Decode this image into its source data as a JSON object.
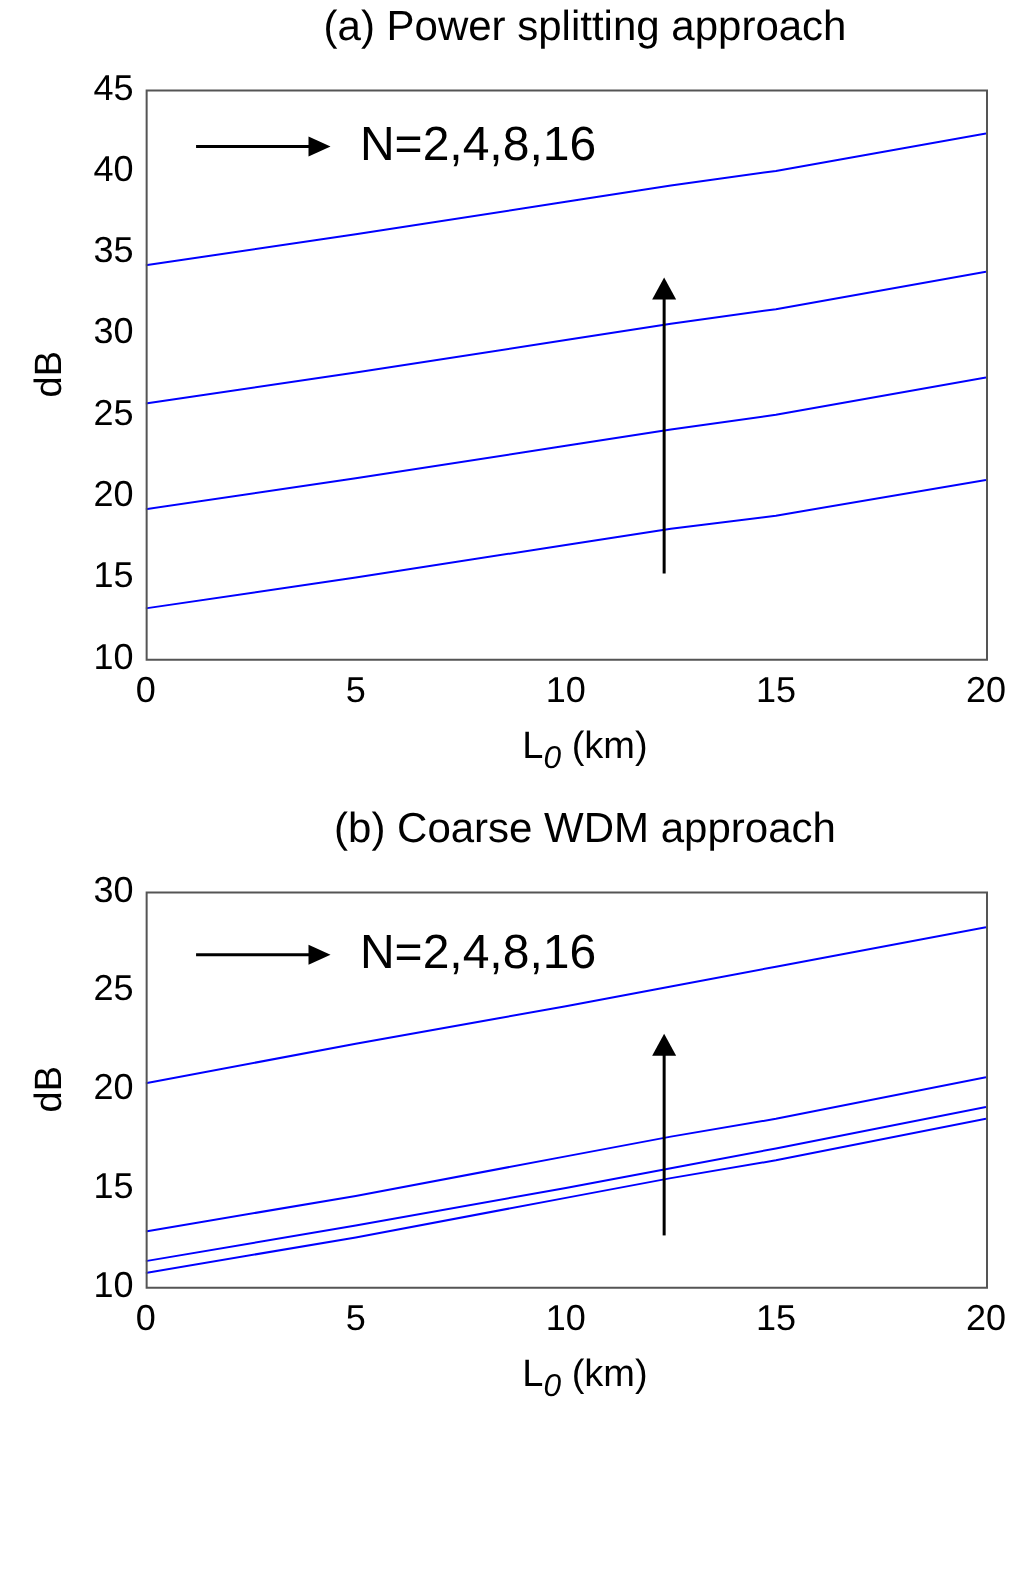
{
  "chart_data": [
    {
      "type": "line",
      "title": "(a) Power splitting approach",
      "xlabel": "L$_{0}$ (km)",
      "ylabel": "dB",
      "x": [
        0,
        5,
        10,
        12.5,
        15,
        20
      ],
      "series": [
        {
          "color": "#0000ff",
          "values": [
            13.1,
            15.0,
            17.0,
            18.0,
            18.8,
            21.0
          ]
        },
        {
          "color": "#0000ff",
          "values": [
            19.2,
            21.1,
            23.1,
            24.1,
            25.0,
            27.3
          ]
        },
        {
          "color": "#0000ff",
          "values": [
            25.7,
            27.6,
            29.6,
            30.6,
            31.5,
            33.8
          ]
        },
        {
          "color": "#0000ff",
          "values": [
            34.2,
            36.1,
            38.1,
            39.1,
            40.0,
            42.3
          ]
        }
      ],
      "xlim": [
        0,
        20
      ],
      "xticks": [
        0,
        5,
        10,
        15,
        20
      ],
      "ylim": [
        10,
        45
      ],
      "yticks": [
        10,
        15,
        20,
        25,
        30,
        35,
        40,
        45
      ],
      "grid": false,
      "legend": false,
      "marker": "none",
      "line_style": "solid",
      "annotations": [
        "N=2,4,8,16"
      ]
    },
    {
      "type": "line",
      "title": "(b) Coarse WDM approach",
      "xlabel": "L$_{0}$ (km)",
      "ylabel": "dB",
      "x": [
        0,
        5,
        10,
        12.5,
        15,
        20
      ],
      "series": [
        {
          "color": "#0000ff",
          "values": [
            10.7,
            12.5,
            14.5,
            15.5,
            16.4,
            18.5
          ]
        },
        {
          "color": "#0000ff",
          "values": [
            11.3,
            13.1,
            15.0,
            16.0,
            17.0,
            19.1
          ]
        },
        {
          "color": "#0000ff",
          "values": [
            12.8,
            14.6,
            16.6,
            17.6,
            18.5,
            20.6
          ]
        },
        {
          "color": "#0000ff",
          "values": [
            20.3,
            22.3,
            24.2,
            25.2,
            26.2,
            28.2
          ]
        }
      ],
      "xlim": [
        0,
        20
      ],
      "xticks": [
        0,
        5,
        10,
        15,
        20
      ],
      "ylim": [
        10,
        30
      ],
      "yticks": [
        10,
        15,
        20,
        25,
        30
      ],
      "grid": false,
      "legend": false,
      "marker": "none",
      "line_style": "solid",
      "annotations": [
        "N=2,4,8,16"
      ]
    }
  ]
}
